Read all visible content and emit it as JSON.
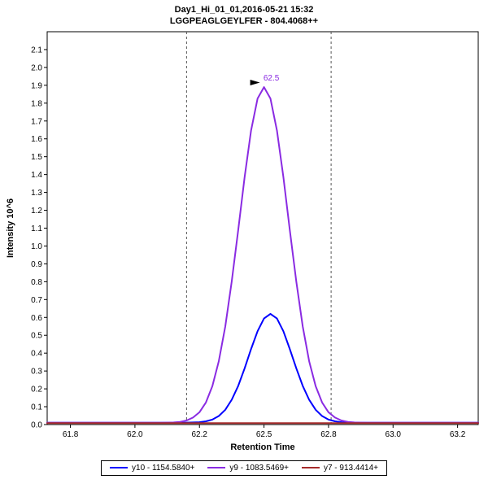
{
  "header": {
    "title": "Day1_Hi_01_01,2016-05-21 15:32",
    "subtitle": "LGGPEAGLGEYLFER - 804.4068++"
  },
  "chart_data": {
    "type": "line",
    "title": "Day1_Hi_01_01,2016-05-21 15:32",
    "subtitle": "LGGPEAGLGEYLFER - 804.4068++",
    "xlabel": "Retention Time",
    "ylabel": "Intensity 10^6",
    "xlim": [
      61.66,
      63.33
    ],
    "ylim": [
      0,
      2.2
    ],
    "grid": false,
    "legend_position": "bottom",
    "x_ticks": [
      {
        "pos": 61.75,
        "label": "61.8"
      },
      {
        "pos": 62.0,
        "label": "62.0"
      },
      {
        "pos": 62.25,
        "label": "62.2"
      },
      {
        "pos": 62.5,
        "label": "62.5"
      },
      {
        "pos": 62.75,
        "label": "62.8"
      },
      {
        "pos": 63.0,
        "label": "63.0"
      },
      {
        "pos": 63.25,
        "label": "63.2"
      }
    ],
    "y_ticks": [
      0.0,
      0.1,
      0.2,
      0.3,
      0.4,
      0.5,
      0.6,
      0.7,
      0.8,
      0.9,
      1.0,
      1.1,
      1.2,
      1.3,
      1.4,
      1.5,
      1.6,
      1.7,
      1.8,
      1.9,
      2.0,
      2.1
    ],
    "peak_boundaries": [
      62.2,
      62.76
    ],
    "annotation": {
      "text": "62.5",
      "x": 62.5,
      "y": 1.89,
      "color": "#8a2be2"
    },
    "series": [
      {
        "id": "y10",
        "name": "y10 - 1154.5840+",
        "color": "#0000ff",
        "points": [
          [
            61.66,
            0.01
          ],
          [
            62.175,
            0.01
          ],
          [
            62.2,
            0.011
          ],
          [
            62.225,
            0.012
          ],
          [
            62.25,
            0.013
          ],
          [
            62.275,
            0.018
          ],
          [
            62.3,
            0.028
          ],
          [
            62.325,
            0.048
          ],
          [
            62.35,
            0.083
          ],
          [
            62.375,
            0.139
          ],
          [
            62.4,
            0.217
          ],
          [
            62.425,
            0.315
          ],
          [
            62.45,
            0.423
          ],
          [
            62.475,
            0.523
          ],
          [
            62.5,
            0.594
          ],
          [
            62.525,
            0.62
          ],
          [
            62.55,
            0.594
          ],
          [
            62.575,
            0.523
          ],
          [
            62.6,
            0.423
          ],
          [
            62.625,
            0.315
          ],
          [
            62.65,
            0.217
          ],
          [
            62.675,
            0.139
          ],
          [
            62.7,
            0.083
          ],
          [
            62.725,
            0.048
          ],
          [
            62.75,
            0.028
          ],
          [
            62.775,
            0.018
          ],
          [
            62.8,
            0.013
          ],
          [
            62.825,
            0.011
          ],
          [
            62.85,
            0.01
          ],
          [
            63.33,
            0.01
          ]
        ]
      },
      {
        "id": "y9",
        "name": "y9 - 1083.5469+",
        "color": "#8a2be2",
        "points": [
          [
            61.66,
            0.01
          ],
          [
            62.05,
            0.01
          ],
          [
            62.1,
            0.01
          ],
          [
            62.125,
            0.011
          ],
          [
            62.15,
            0.012
          ],
          [
            62.175,
            0.015
          ],
          [
            62.2,
            0.023
          ],
          [
            62.225,
            0.039
          ],
          [
            62.25,
            0.069
          ],
          [
            62.275,
            0.124
          ],
          [
            62.3,
            0.215
          ],
          [
            62.325,
            0.355
          ],
          [
            62.35,
            0.55
          ],
          [
            62.375,
            0.801
          ],
          [
            62.4,
            1.09
          ],
          [
            62.425,
            1.387
          ],
          [
            62.45,
            1.647
          ],
          [
            62.475,
            1.826
          ],
          [
            62.5,
            1.89
          ],
          [
            62.525,
            1.826
          ],
          [
            62.55,
            1.647
          ],
          [
            62.575,
            1.387
          ],
          [
            62.6,
            1.09
          ],
          [
            62.625,
            0.801
          ],
          [
            62.65,
            0.55
          ],
          [
            62.675,
            0.355
          ],
          [
            62.7,
            0.215
          ],
          [
            62.725,
            0.124
          ],
          [
            62.75,
            0.069
          ],
          [
            62.775,
            0.039
          ],
          [
            62.8,
            0.023
          ],
          [
            62.825,
            0.015
          ],
          [
            62.85,
            0.012
          ],
          [
            62.875,
            0.011
          ],
          [
            62.9,
            0.01
          ],
          [
            63.33,
            0.01
          ]
        ]
      },
      {
        "id": "y7",
        "name": "y7 - 913.4414+",
        "color": "#a52a2a",
        "points": [
          [
            61.66,
            0.008
          ],
          [
            63.33,
            0.008
          ]
        ]
      }
    ]
  }
}
